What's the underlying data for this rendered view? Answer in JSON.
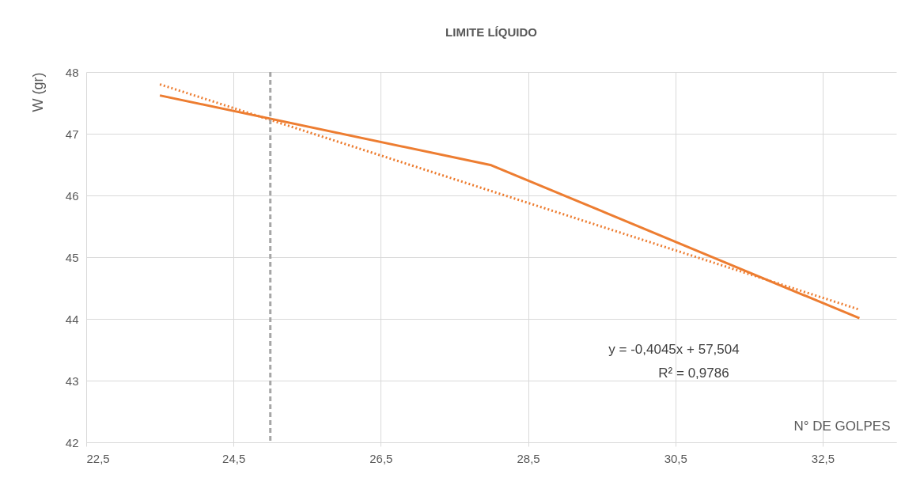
{
  "chart_data": {
    "type": "line",
    "title": "LIMITE LÍQUIDO",
    "xlabel": "N° DE GOLPES",
    "ylabel": "W (gr)",
    "series": [
      {
        "type": "line",
        "color": "#ed7d31",
        "line_style": "solid",
        "x": [
          23.5,
          28,
          33
        ],
        "values": [
          47.62,
          46.49,
          44.01
        ]
      },
      {
        "type": "line",
        "color": "#ed7d31",
        "line_style": "dotted",
        "x": [
          23.5,
          33
        ],
        "values": [
          47.8,
          44.15
        ]
      }
    ],
    "xlim": [
      22.5,
      33.5
    ],
    "xticks": [
      {
        "value": 22.5,
        "label": "22,5"
      },
      {
        "value": 24.5,
        "label": "24,5"
      },
      {
        "value": 26.5,
        "label": "26,5"
      },
      {
        "value": 28.5,
        "label": "28,5"
      },
      {
        "value": 30.5,
        "label": "30,5"
      },
      {
        "value": 32.5,
        "label": "32,5"
      }
    ],
    "ylim": [
      42,
      48
    ],
    "yticks": [
      42,
      43,
      44,
      45,
      46,
      47,
      48
    ],
    "ref_lines": [
      {
        "axis": "x",
        "value": 25,
        "color": "#a6a6a6",
        "line_style": "dashed"
      }
    ],
    "annotations": [
      "y = -0,4045x + 57,504",
      "R² = 0,9786"
    ],
    "grid": true,
    "marker": "none"
  }
}
